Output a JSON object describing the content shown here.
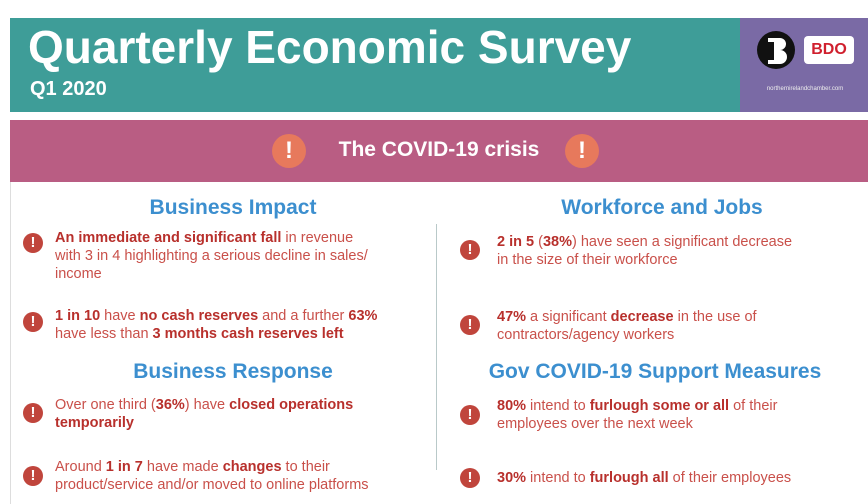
{
  "header": {
    "title": "Quarterly Economic Survey",
    "subtitle": "Q1 2020",
    "logo": {
      "brand": "BDO",
      "url": "northernirelandchamber.com"
    }
  },
  "banner": {
    "title": "The COVID-19 crisis",
    "icon": "!"
  },
  "sections": [
    {
      "title": "Business Impact",
      "items": [
        {
          "lines": [
            [
              {
                "text": "An immediate and significant fall",
                "bold": true
              },
              {
                "text": " in revenue",
                "bold": false
              }
            ],
            [
              {
                "text": "with 3 in 4 highlighting a serious decline in sales/",
                "bold": false
              }
            ],
            [
              {
                "text": "income",
                "bold": false
              }
            ]
          ]
        },
        {
          "lines": [
            [
              {
                "text": "1 in 10",
                "bold": true
              },
              {
                "text": " have ",
                "bold": false
              },
              {
                "text": "no cash reserves",
                "bold": true
              },
              {
                "text": " and a further ",
                "bold": false
              },
              {
                "text": "63%",
                "bold": true
              }
            ],
            [
              {
                "text": "have less than ",
                "bold": false
              },
              {
                "text": "3 months cash reserves left",
                "bold": true
              }
            ]
          ]
        }
      ]
    },
    {
      "title": "Business Response",
      "items": [
        {
          "lines": [
            [
              {
                "text": "Over one third (",
                "bold": false
              },
              {
                "text": "36%",
                "bold": true
              },
              {
                "text": ") have ",
                "bold": false
              },
              {
                "text": "closed operations",
                "bold": true
              }
            ],
            [
              {
                "text": "temporarily",
                "bold": true
              }
            ]
          ]
        },
        {
          "lines": [
            [
              {
                "text": "Around ",
                "bold": false
              },
              {
                "text": "1 in 7",
                "bold": true
              },
              {
                "text": " have made ",
                "bold": false
              },
              {
                "text": "changes",
                "bold": true
              },
              {
                "text": " to their",
                "bold": false
              }
            ],
            [
              {
                "text": "product/service and/or moved to online platforms",
                "bold": false
              }
            ]
          ]
        }
      ]
    },
    {
      "title": "Workforce and Jobs",
      "items": [
        {
          "lines": [
            [
              {
                "text": "2 in 5",
                "bold": true
              },
              {
                "text": " (",
                "bold": false
              },
              {
                "text": "38%",
                "bold": true
              },
              {
                "text": ") have seen a significant decrease",
                "bold": false
              }
            ],
            [
              {
                "text": "in the size of their workforce",
                "bold": false
              }
            ]
          ]
        },
        {
          "lines": [
            [
              {
                "text": "47%",
                "bold": true
              },
              {
                "text": " a significant ",
                "bold": false
              },
              {
                "text": "decrease",
                "bold": true
              },
              {
                "text": " in the use of",
                "bold": false
              }
            ],
            [
              {
                "text": "contractors/agency workers",
                "bold": false
              }
            ]
          ]
        }
      ]
    },
    {
      "title": "Gov COVID-19 Support Measures",
      "items": [
        {
          "lines": [
            [
              {
                "text": "80%",
                "bold": true
              },
              {
                "text": " intend to ",
                "bold": false
              },
              {
                "text": "furlough some or all",
                "bold": true
              },
              {
                "text": " of their",
                "bold": false
              }
            ],
            [
              {
                "text": "employees over the next week",
                "bold": false
              }
            ]
          ]
        },
        {
          "lines": [
            [
              {
                "text": "30%",
                "bold": true
              },
              {
                "text": " intend to ",
                "bold": false
              },
              {
                "text": "furlough all",
                "bold": true
              },
              {
                "text": " of their employees",
                "bold": false
              }
            ]
          ]
        }
      ]
    }
  ]
}
